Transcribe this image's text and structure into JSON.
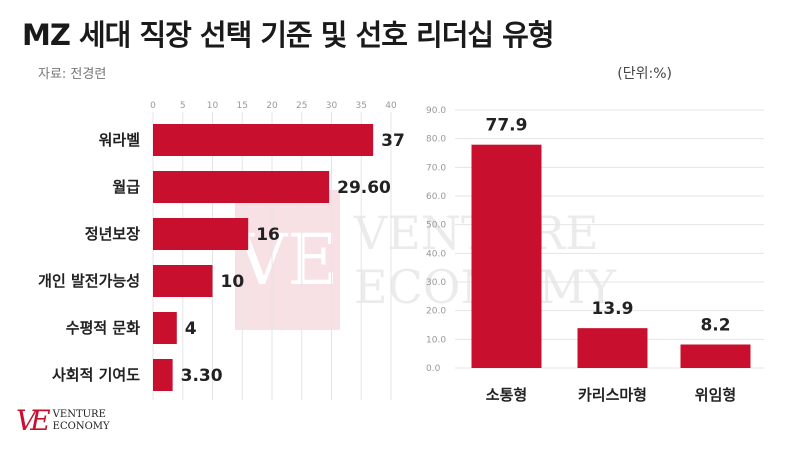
{
  "header": {
    "title": "MZ 세대 직장 선택 기준 및 선호 리더십 유형",
    "source": "자료: 전경련",
    "unit": "(단위:%)"
  },
  "brand": {
    "mark": "VE",
    "line1": "VENTURE",
    "line2": "ECONOMY"
  },
  "colors": {
    "bar": "#c8102e",
    "accent": "#c8102e"
  },
  "chart_data": [
    {
      "type": "bar",
      "orientation": "horizontal",
      "categories": [
        "워라벨",
        "월급",
        "정년보장",
        "개인 발전가능성",
        "수평적 문화",
        "사회적 기여도"
      ],
      "values": [
        37,
        29.6,
        16,
        10,
        4,
        3.3
      ],
      "value_labels": [
        "37",
        "29.60",
        "16",
        "10",
        "4",
        "3.30"
      ],
      "xlim": [
        0,
        40
      ],
      "xticks": [
        "0",
        "5",
        "10",
        "15",
        "20",
        "25",
        "30",
        "35",
        "40"
      ],
      "grid": true
    },
    {
      "type": "bar",
      "orientation": "vertical",
      "categories": [
        "소통형",
        "카리스마형",
        "위임형"
      ],
      "values": [
        77.9,
        13.9,
        8.2
      ],
      "value_labels": [
        "77.9",
        "13.9",
        "8.2"
      ],
      "ylim": [
        0,
        90
      ],
      "yticks": [
        "0.0",
        "10.0",
        "20.0",
        "30.0",
        "40.0",
        "50.0",
        "60.0",
        "70.0",
        "80.0",
        "90.0"
      ],
      "grid": true
    }
  ]
}
